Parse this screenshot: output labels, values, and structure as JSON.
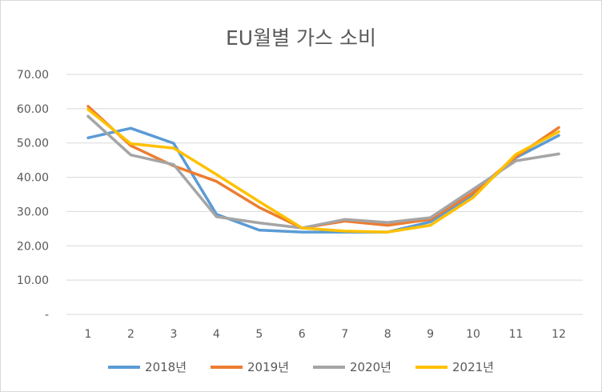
{
  "chart_data": {
    "type": "line",
    "title": "EU월별 가스 소비",
    "xlabel": "",
    "ylabel": "",
    "categories": [
      "1",
      "2",
      "3",
      "4",
      "5",
      "6",
      "7",
      "8",
      "9",
      "10",
      "11",
      "12"
    ],
    "y_tick_labels": [
      "-",
      "10.00",
      "20.00",
      "30.00",
      "40.00",
      "50.00",
      "60.00",
      "70.00"
    ],
    "ylim": [
      0,
      70
    ],
    "grid": true,
    "legend_position": "bottom",
    "series": [
      {
        "name": "2018년",
        "color": "#5B9BD5",
        "values": [
          51.5,
          54.3,
          49.9,
          29.2,
          24.6,
          24.0,
          24.0,
          24.0,
          27.0,
          35.0,
          45.7,
          52.2
        ]
      },
      {
        "name": "2019년",
        "color": "#ED7D31",
        "values": [
          60.7,
          49.2,
          43.3,
          38.8,
          31.2,
          25.2,
          27.2,
          26.0,
          27.7,
          35.5,
          46.0,
          54.5
        ]
      },
      {
        "name": "2020년",
        "color": "#A5A5A5",
        "values": [
          57.8,
          46.5,
          43.7,
          28.5,
          26.7,
          25.2,
          27.7,
          26.8,
          28.2,
          36.5,
          44.8,
          46.8
        ]
      },
      {
        "name": "2021년",
        "color": "#FFC000",
        "values": [
          59.8,
          49.8,
          48.5,
          40.8,
          32.9,
          25.2,
          24.3,
          24.0,
          26.0,
          34.1,
          46.7,
          53.3
        ]
      }
    ]
  }
}
